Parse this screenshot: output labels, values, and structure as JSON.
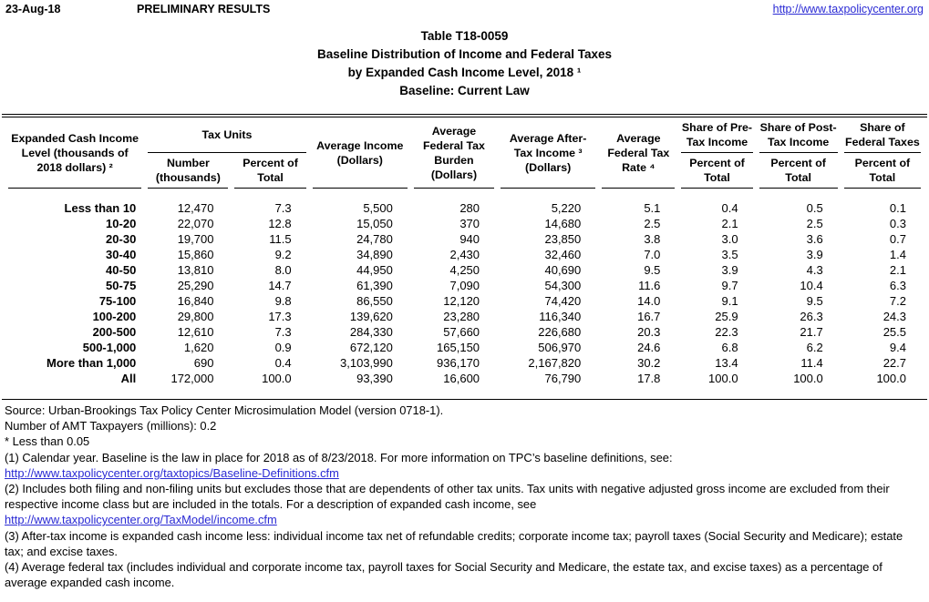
{
  "header": {
    "date": "23-Aug-18",
    "status": "PRELIMINARY RESULTS",
    "site_url": "http://www.taxpolicycenter.org"
  },
  "title": {
    "line1": "Table T18-0059",
    "line2": "Baseline Distribution of Income and Federal Taxes",
    "line3": "by Expanded Cash Income Level, 2018 ¹",
    "line4": "Baseline: Current Law"
  },
  "table": {
    "headers": {
      "income_level": "Expanded Cash Income\nLevel (thousands of\n2018 dollars) ²",
      "tax_units_group": "Tax Units",
      "number": "Number\n(thousands)",
      "percent_of_total": "Percent of\nTotal",
      "avg_income": "Average Income\n(Dollars)",
      "avg_fed_tax_burden": "Average\nFederal Tax\nBurden\n(Dollars)",
      "avg_after_tax_income": "Average After-\nTax Income ³\n(Dollars)",
      "avg_fed_tax_rate": "Average\nFederal Tax\nRate ⁴",
      "share_pre_tax": "Share of Pre-\nTax Income",
      "share_post_tax": "Share of Post-\nTax Income",
      "share_fed_taxes": "Share of\nFederal Taxes",
      "sub_percent_pre": "Percent of\nTotal",
      "sub_percent_post": "Percent of\nTotal",
      "sub_percent_fed": "Percent of\nTotal"
    },
    "rows": [
      [
        "Less than 10",
        "12,470",
        "7.3",
        "5,500",
        "280",
        "5,220",
        "5.1",
        "0.4",
        "0.5",
        "0.1"
      ],
      [
        "10-20",
        "22,070",
        "12.8",
        "15,050",
        "370",
        "14,680",
        "2.5",
        "2.1",
        "2.5",
        "0.3"
      ],
      [
        "20-30",
        "19,700",
        "11.5",
        "24,780",
        "940",
        "23,850",
        "3.8",
        "3.0",
        "3.6",
        "0.7"
      ],
      [
        "30-40",
        "15,860",
        "9.2",
        "34,890",
        "2,430",
        "32,460",
        "7.0",
        "3.5",
        "3.9",
        "1.4"
      ],
      [
        "40-50",
        "13,810",
        "8.0",
        "44,950",
        "4,250",
        "40,690",
        "9.5",
        "3.9",
        "4.3",
        "2.1"
      ],
      [
        "50-75",
        "25,290",
        "14.7",
        "61,390",
        "7,090",
        "54,300",
        "11.6",
        "9.7",
        "10.4",
        "6.3"
      ],
      [
        "75-100",
        "16,840",
        "9.8",
        "86,550",
        "12,120",
        "74,420",
        "14.0",
        "9.1",
        "9.5",
        "7.2"
      ],
      [
        "100-200",
        "29,800",
        "17.3",
        "139,620",
        "23,280",
        "116,340",
        "16.7",
        "25.9",
        "26.3",
        "24.3"
      ],
      [
        "200-500",
        "12,610",
        "7.3",
        "284,330",
        "57,660",
        "226,680",
        "20.3",
        "22.3",
        "21.7",
        "25.5"
      ],
      [
        "500-1,000",
        "1,620",
        "0.9",
        "672,120",
        "165,150",
        "506,970",
        "24.6",
        "6.8",
        "6.2",
        "9.4"
      ],
      [
        "More than 1,000",
        "690",
        "0.4",
        "3,103,990",
        "936,170",
        "2,167,820",
        "30.2",
        "13.4",
        "11.4",
        "22.7"
      ],
      [
        "All",
        "172,000",
        "100.0",
        "93,390",
        "16,600",
        "76,790",
        "17.8",
        "100.0",
        "100.0",
        "100.0"
      ]
    ]
  },
  "footnotes": [
    {
      "text": "Source: Urban-Brookings Tax Policy Center Microsimulation Model (version 0718-1).",
      "link": false
    },
    {
      "text": "Number of AMT Taxpayers (millions): 0.2",
      "link": false
    },
    {
      "text": "* Less than 0.05",
      "link": false
    },
    {
      "text": "(1) Calendar year. Baseline is the law in place for 2018 as of 8/23/2018. For more information on TPC’s baseline definitions, see:",
      "link": false
    },
    {
      "text": "http://www.taxpolicycenter.org/taxtopics/Baseline-Definitions.cfm",
      "link": true
    },
    {
      "text": "(2) Includes both filing and non-filing units but excludes those that are dependents of other tax units. Tax units with negative adjusted gross income are excluded from their respective income class but are included in the totals. For a description of expanded cash income, see",
      "link": false
    },
    {
      "text": "http://www.taxpolicycenter.org/TaxModel/income.cfm",
      "link": true
    },
    {
      "text": "(3) After-tax income is expanded cash income less: individual income tax net of refundable credits; corporate income tax; payroll taxes (Social Security and Medicare); estate tax; and excise taxes.",
      "link": false
    },
    {
      "text": "(4) Average federal tax (includes individual and corporate income tax, payroll taxes for Social Security and Medicare, the estate tax, and excise taxes) as a percentage of average expanded cash income.",
      "link": false
    }
  ]
}
